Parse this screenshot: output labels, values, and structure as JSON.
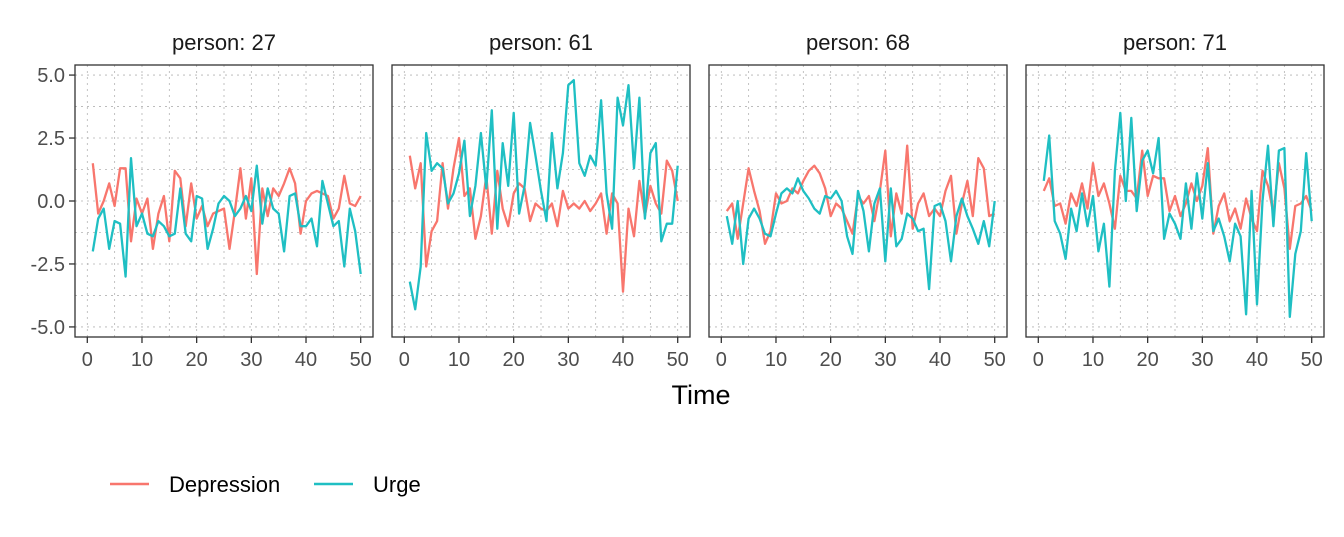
{
  "chart_data": {
    "type": "line",
    "xlabel": "Time",
    "ylabel": "",
    "xlim": [
      0,
      50
    ],
    "ylim": [
      -5,
      5
    ],
    "x_ticks": [
      0,
      10,
      20,
      30,
      40,
      50
    ],
    "y_ticks": [
      -5.0,
      -2.5,
      0.0,
      2.5,
      5.0
    ],
    "y_tick_labels": [
      "-5.0",
      "-2.5",
      "0.0",
      "2.5",
      "5.0"
    ],
    "grid": true,
    "legend_position": "bottom-left",
    "series_colors": {
      "Depression": "#F8766D",
      "Urge": "#1FBFC3"
    },
    "legend": [
      {
        "name": "Depression",
        "color": "#F8766D"
      },
      {
        "name": "Urge",
        "color": "#1FBFC3"
      }
    ],
    "panels": [
      {
        "label": "person: 27",
        "series": [
          {
            "name": "Depression",
            "x": [
              1,
              2,
              3,
              4,
              5,
              6,
              7,
              8,
              9,
              10,
              11,
              12,
              13,
              14,
              15,
              16,
              17,
              18,
              19,
              20,
              21,
              22,
              23,
              24,
              25,
              26,
              27,
              28,
              29,
              30,
              31,
              32,
              33,
              34,
              35,
              36,
              37,
              38,
              39,
              40,
              41,
              42,
              43,
              44,
              45,
              46,
              47,
              48,
              49,
              50
            ],
            "values": [
              1.5,
              -0.5,
              0.0,
              0.7,
              -0.2,
              1.3,
              1.3,
              -1.6,
              0.1,
              -0.5,
              0.1,
              -1.9,
              -0.5,
              0.2,
              -1.6,
              1.2,
              0.9,
              -1.0,
              0.7,
              -0.7,
              -0.2,
              -1.0,
              -0.5,
              -0.4,
              -0.3,
              -1.9,
              -0.4,
              1.3,
              -0.7,
              0.9,
              -2.9,
              0.5,
              -0.6,
              0.5,
              0.2,
              0.7,
              1.3,
              0.7,
              -1.3,
              0.0,
              0.3,
              0.4,
              0.3,
              0.2,
              -0.7,
              -0.3,
              1.0,
              -0.1,
              -0.2,
              0.2
            ]
          },
          {
            "name": "Urge",
            "x": [
              1,
              2,
              3,
              4,
              5,
              6,
              7,
              8,
              9,
              10,
              11,
              12,
              13,
              14,
              15,
              16,
              17,
              18,
              19,
              20,
              21,
              22,
              23,
              24,
              25,
              26,
              27,
              28,
              29,
              30,
              31,
              32,
              33,
              34,
              35,
              36,
              37,
              38,
              39,
              40,
              41,
              42,
              43,
              44,
              45,
              46,
              47,
              48,
              49,
              50
            ],
            "values": [
              -2.0,
              -0.7,
              -0.3,
              -1.9,
              -0.8,
              -0.9,
              -3.0,
              1.7,
              -1.0,
              -0.5,
              -1.3,
              -1.4,
              -0.8,
              -1.0,
              -1.4,
              -1.3,
              0.5,
              -1.3,
              -1.6,
              0.2,
              0.1,
              -1.9,
              -1.1,
              -0.1,
              0.2,
              0.0,
              -0.6,
              -0.3,
              0.2,
              -0.4,
              1.4,
              -0.9,
              0.5,
              -0.3,
              -0.5,
              -2.0,
              0.2,
              0.3,
              -1.0,
              -1.0,
              -0.7,
              -1.8,
              0.8,
              -0.1,
              -1.0,
              -0.8,
              -2.6,
              -0.3,
              -1.2,
              -2.9
            ]
          }
        ]
      },
      {
        "label": "person: 61",
        "series": [
          {
            "name": "Depression",
            "x": [
              1,
              2,
              3,
              4,
              5,
              6,
              7,
              8,
              9,
              10,
              11,
              12,
              13,
              14,
              15,
              16,
              17,
              18,
              19,
              20,
              21,
              22,
              23,
              24,
              25,
              26,
              27,
              28,
              29,
              30,
              31,
              32,
              33,
              34,
              35,
              36,
              37,
              38,
              39,
              40,
              41,
              42,
              43,
              44,
              45,
              46,
              47,
              48,
              49,
              50
            ],
            "values": [
              1.8,
              0.5,
              1.5,
              -2.6,
              -1.2,
              -0.8,
              1.5,
              -0.3,
              1.3,
              2.5,
              0.2,
              0.5,
              -1.5,
              -0.6,
              1.0,
              -1.3,
              1.2,
              -0.3,
              -1.0,
              0.3,
              0.7,
              0.5,
              -0.8,
              -0.1,
              -0.3,
              -0.4,
              -0.1,
              -1.0,
              0.4,
              -0.3,
              -0.1,
              -0.3,
              0.0,
              -0.4,
              -0.1,
              0.3,
              -1.3,
              0.3,
              -0.1,
              -3.6,
              -0.3,
              -1.4,
              0.8,
              -0.6,
              0.6,
              -0.1,
              -0.5,
              1.6,
              1.2,
              0.0
            ]
          },
          {
            "name": "Urge",
            "x": [
              1,
              2,
              3,
              4,
              5,
              6,
              7,
              8,
              9,
              10,
              11,
              12,
              13,
              14,
              15,
              16,
              17,
              18,
              19,
              20,
              21,
              22,
              23,
              24,
              25,
              26,
              27,
              28,
              29,
              30,
              31,
              32,
              33,
              34,
              35,
              36,
              37,
              38,
              39,
              40,
              41,
              42,
              43,
              44,
              45,
              46,
              47,
              48,
              49,
              50
            ],
            "values": [
              -3.2,
              -4.3,
              -2.6,
              2.7,
              1.2,
              1.5,
              1.3,
              -0.1,
              0.3,
              1.1,
              2.4,
              -0.6,
              0.6,
              2.7,
              0.5,
              3.6,
              -1.1,
              2.3,
              0.6,
              3.5,
              -0.5,
              0.6,
              3.1,
              1.8,
              0.4,
              -0.8,
              2.7,
              0.5,
              1.9,
              4.6,
              4.8,
              1.5,
              1.0,
              1.8,
              1.4,
              4.0,
              0.3,
              -1.1,
              4.1,
              3.0,
              4.6,
              1.3,
              4.1,
              -0.7,
              1.9,
              2.3,
              -1.6,
              -0.9,
              -0.9,
              1.4
            ]
          }
        ]
      },
      {
        "label": "person: 68",
        "series": [
          {
            "name": "Depression",
            "x": [
              1,
              2,
              3,
              4,
              5,
              6,
              7,
              8,
              9,
              10,
              11,
              12,
              13,
              14,
              15,
              16,
              17,
              18,
              19,
              20,
              21,
              22,
              23,
              24,
              25,
              26,
              27,
              28,
              29,
              30,
              31,
              32,
              33,
              34,
              35,
              36,
              37,
              38,
              39,
              40,
              41,
              42,
              43,
              44,
              45,
              46,
              47,
              48,
              49,
              50
            ],
            "values": [
              -0.4,
              -0.1,
              -1.5,
              -0.1,
              1.3,
              0.4,
              -0.4,
              -1.7,
              -1.2,
              0.3,
              -0.1,
              0.0,
              0.5,
              0.3,
              0.8,
              1.2,
              1.4,
              1.1,
              0.5,
              -0.6,
              -0.1,
              -0.3,
              -0.8,
              -1.3,
              0.2,
              -0.1,
              0.2,
              -0.8,
              0.4,
              2.0,
              -1.4,
              0.3,
              -0.5,
              2.2,
              -1.1,
              -0.1,
              0.3,
              -0.6,
              -0.3,
              -0.6,
              0.4,
              1.0,
              -1.3,
              -0.1,
              0.8,
              -0.6,
              1.7,
              1.3,
              -0.6,
              -0.5
            ]
          },
          {
            "name": "Urge",
            "x": [
              1,
              2,
              3,
              4,
              5,
              6,
              7,
              8,
              9,
              10,
              11,
              12,
              13,
              14,
              15,
              16,
              17,
              18,
              19,
              20,
              21,
              22,
              23,
              24,
              25,
              26,
              27,
              28,
              29,
              30,
              31,
              32,
              33,
              34,
              35,
              36,
              37,
              38,
              39,
              40,
              41,
              42,
              43,
              44,
              45,
              46,
              47,
              48,
              49,
              50
            ],
            "values": [
              -0.6,
              -1.7,
              0.0,
              -2.5,
              -0.7,
              -0.3,
              -0.7,
              -1.3,
              -1.4,
              -0.5,
              0.3,
              0.5,
              0.3,
              0.9,
              0.4,
              0.1,
              -0.3,
              -0.5,
              0.2,
              0.1,
              0.4,
              0.0,
              -1.4,
              -2.1,
              0.4,
              -0.4,
              -2.0,
              -0.1,
              0.5,
              -2.4,
              0.5,
              -1.8,
              -1.5,
              -0.5,
              -0.7,
              -1.2,
              -1.1,
              -3.5,
              -0.2,
              -0.1,
              -0.8,
              -2.4,
              -0.6,
              0.1,
              -0.6,
              -1.1,
              -1.7,
              -0.8,
              -1.8,
              0.0
            ]
          }
        ]
      },
      {
        "label": "person: 71",
        "series": [
          {
            "name": "Depression",
            "x": [
              1,
              2,
              3,
              4,
              5,
              6,
              7,
              8,
              9,
              10,
              11,
              12,
              13,
              14,
              15,
              16,
              17,
              18,
              19,
              20,
              21,
              22,
              23,
              24,
              25,
              26,
              27,
              28,
              29,
              30,
              31,
              32,
              33,
              34,
              35,
              36,
              37,
              38,
              39,
              40,
              41,
              42,
              43,
              44,
              45,
              46,
              47,
              48,
              49,
              50
            ],
            "values": [
              0.4,
              0.9,
              -0.2,
              -0.1,
              -0.9,
              0.3,
              -0.2,
              0.7,
              -0.3,
              1.5,
              0.2,
              0.7,
              -0.1,
              -1.1,
              1.0,
              0.4,
              0.4,
              0.1,
              2.0,
              0.2,
              1.0,
              0.9,
              0.9,
              -0.4,
              0.2,
              -0.6,
              -0.1,
              0.7,
              0.0,
              0.6,
              2.1,
              -1.3,
              -0.2,
              0.3,
              -0.8,
              -0.3,
              -1.1,
              0.1,
              -0.7,
              -1.2,
              1.2,
              0.6,
              -0.5,
              1.5,
              0.5,
              -1.9,
              -0.2,
              -0.1,
              0.2,
              -0.4
            ]
          },
          {
            "name": "Urge",
            "x": [
              1,
              2,
              3,
              4,
              5,
              6,
              7,
              8,
              9,
              10,
              11,
              12,
              13,
              14,
              15,
              16,
              17,
              18,
              19,
              20,
              21,
              22,
              23,
              24,
              25,
              26,
              27,
              28,
              29,
              30,
              31,
              32,
              33,
              34,
              35,
              36,
              37,
              38,
              39,
              40,
              41,
              42,
              43,
              44,
              45,
              46,
              47,
              48,
              49,
              50
            ],
            "values": [
              0.8,
              2.6,
              -0.8,
              -1.3,
              -2.3,
              -0.3,
              -1.2,
              0.3,
              -1.0,
              0.2,
              -2.0,
              -0.9,
              -3.4,
              1.2,
              3.5,
              0.0,
              3.3,
              -0.4,
              1.6,
              2.0,
              1.1,
              2.5,
              -1.5,
              -0.5,
              -0.9,
              -1.5,
              0.7,
              -1.1,
              1.1,
              -0.7,
              1.5,
              -1.2,
              -0.7,
              -1.4,
              -2.4,
              -0.9,
              -1.4,
              -4.5,
              0.4,
              -4.1,
              0.0,
              2.2,
              -1.0,
              2.0,
              2.1,
              -4.6,
              -2.1,
              -1.2,
              1.9,
              -0.8
            ]
          }
        ]
      }
    ]
  }
}
